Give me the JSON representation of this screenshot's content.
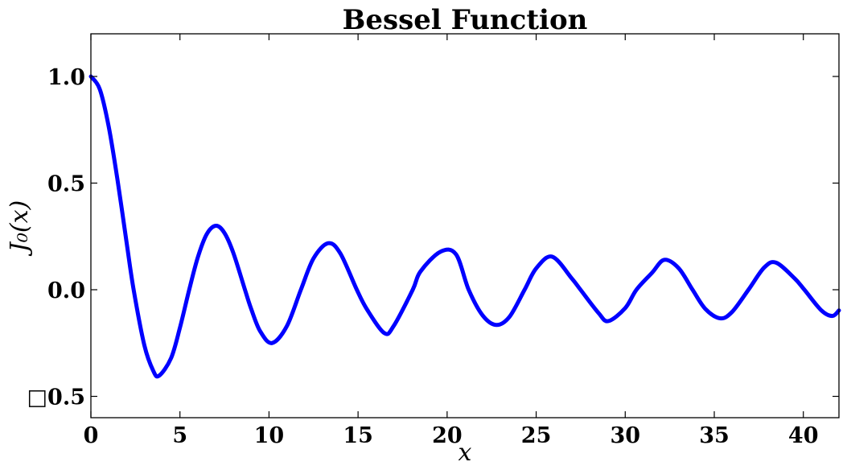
{
  "chart_data": {
    "type": "line",
    "title": "Bessel Function",
    "xlabel": "x",
    "ylabel": "J₀(x)",
    "xlim": [
      0,
      42
    ],
    "ylim": [
      -0.6,
      1.2
    ],
    "xticks": [
      0,
      5,
      10,
      15,
      20,
      25,
      30,
      35,
      40
    ],
    "xtick_labels": [
      "0",
      "5",
      "10",
      "15",
      "20",
      "25",
      "30",
      "35",
      "40"
    ],
    "yticks": [
      -0.5,
      0.0,
      0.5,
      1.0
    ],
    "ytick_labels": [
      "□0.5",
      "0.0",
      "0.5",
      "1.0"
    ],
    "grid": false,
    "legend": "none",
    "series": [
      {
        "color": "#0000ff",
        "x": [
          0,
          0.5,
          1,
          1.5,
          2,
          2.4,
          3,
          3.5,
          3.83,
          4.5,
          5,
          5.52,
          6,
          6.5,
          7.02,
          7.5,
          8,
          8.65,
          9,
          9.5,
          10.17,
          11,
          11.79,
          12.5,
          13.32,
          14,
          14.93,
          15.5,
          16.47,
          17,
          18.07,
          18.5,
          19.62,
          20.5,
          21.21,
          22,
          22.76,
          23.5,
          24.35,
          25,
          25.9,
          27,
          27.49,
          28.5,
          29.05,
          30,
          30.63,
          31.5,
          32.19,
          33,
          33.78,
          34.5,
          35.33,
          36,
          36.92,
          37.8,
          38.47,
          39.5,
          40.06,
          41,
          41.62,
          42
        ],
        "y": [
          1.0,
          0.94,
          0.765,
          0.512,
          0.224,
          0.0,
          -0.26,
          -0.38,
          -0.403,
          -0.321,
          -0.178,
          0.0,
          0.151,
          0.26,
          0.3,
          0.266,
          0.172,
          0.0,
          -0.09,
          -0.194,
          -0.25,
          -0.171,
          0.0,
          0.147,
          0.218,
          0.171,
          0.0,
          -0.092,
          -0.203,
          -0.17,
          0.0,
          0.085,
          0.178,
          0.166,
          0.0,
          -0.121,
          -0.165,
          -0.127,
          0.0,
          0.1,
          0.155,
          0.053,
          0.0,
          -0.109,
          -0.147,
          -0.086,
          0.0,
          0.079,
          0.14,
          0.101,
          0.0,
          -0.09,
          -0.134,
          -0.104,
          0.0,
          0.104,
          0.127,
          0.054,
          0.0,
          -0.096,
          -0.123,
          -0.097
        ]
      }
    ]
  }
}
